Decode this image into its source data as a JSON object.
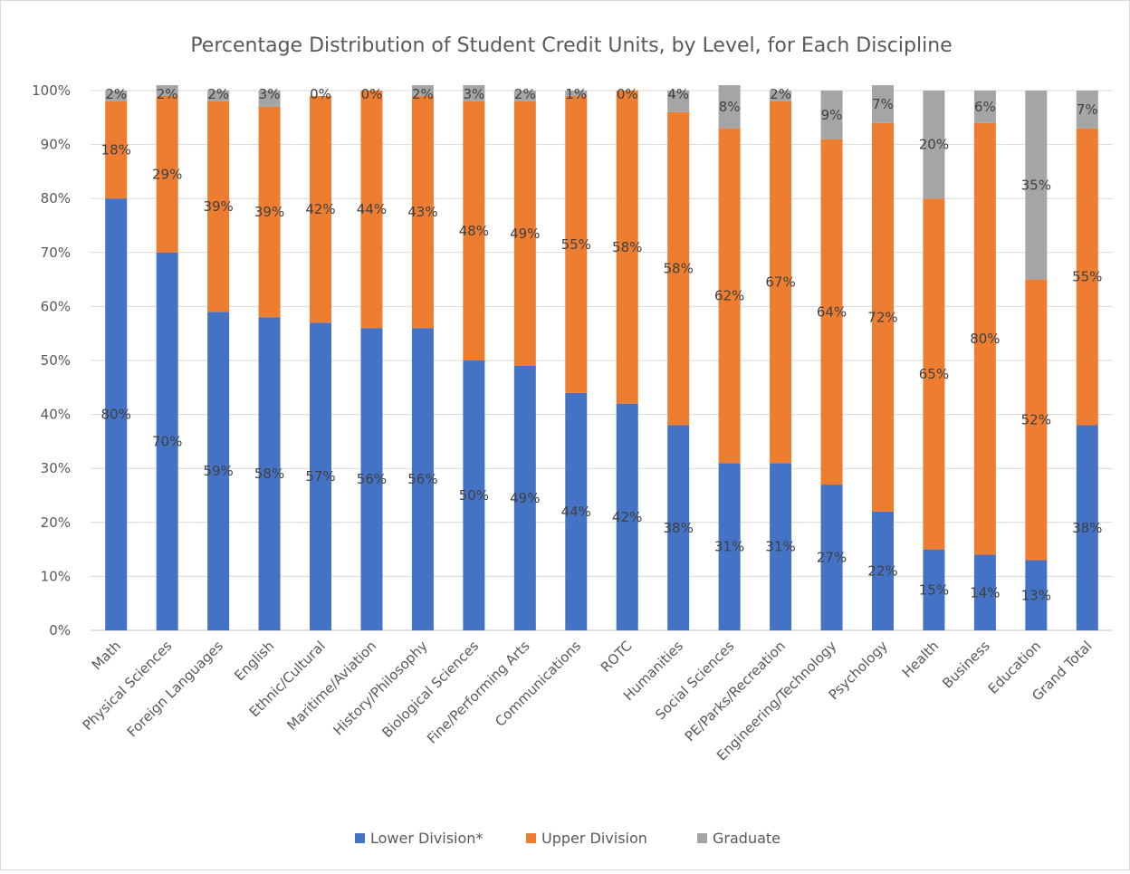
{
  "chart_data": {
    "type": "bar",
    "stacked": true,
    "title": "Percentage Distribution of Student Credit Units, by Level, for Each Discipline",
    "xlabel": "",
    "ylabel": "",
    "ylim": [
      0,
      100
    ],
    "yticks": [
      "0%",
      "10%",
      "20%",
      "30%",
      "40%",
      "50%",
      "60%",
      "70%",
      "80%",
      "90%",
      "100%"
    ],
    "grid": true,
    "legend_position": "bottom",
    "categories": [
      "Math",
      "Physical Sciences",
      "Foreign Languages",
      "English",
      "Ethnic/Cultural",
      "Maritime/Aviation",
      "History/Philosophy",
      "Biological Sciences",
      "Fine/Performing Arts",
      "Communications",
      "ROTC",
      "Humanities",
      "Social Sciences",
      "PE/Parks/Recreation",
      "Engineering/Technology",
      "Psychology",
      "Health",
      "Business",
      "Education",
      "Grand Total"
    ],
    "series": [
      {
        "name": "Lower Division*",
        "color": "#4472c4",
        "values": [
          80,
          70,
          59,
          58,
          57,
          56,
          56,
          50,
          49,
          44,
          42,
          38,
          31,
          31,
          27,
          22,
          15,
          14,
          13,
          38
        ],
        "labels": [
          "80%",
          "70%",
          "59%",
          "58%",
          "57%",
          "56%",
          "56%",
          "50%",
          "49%",
          "44%",
          "42%",
          "38%",
          "31%",
          "31%",
          "27%",
          "22%",
          "15%",
          "14%",
          "13%",
          "38%"
        ]
      },
      {
        "name": "Upper Division",
        "color": "#ed7d31",
        "values": [
          18,
          29,
          39,
          39,
          42,
          44,
          43,
          48,
          49,
          55,
          58,
          58,
          62,
          67,
          64,
          72,
          65,
          80,
          52,
          55
        ],
        "labels": [
          "18%",
          "29%",
          "39%",
          "39%",
          "42%",
          "44%",
          "43%",
          "48%",
          "49%",
          "55%",
          "58%",
          "58%",
          "62%",
          "67%",
          "64%",
          "72%",
          "65%",
          "80%",
          "52%",
          "55%"
        ]
      },
      {
        "name": "Graduate",
        "color": "#a5a5a5",
        "values": [
          2,
          2,
          2,
          3,
          0,
          0,
          2,
          3,
          2,
          1,
          0,
          4,
          8,
          2,
          9,
          7,
          20,
          6,
          35,
          7
        ],
        "labels": [
          "2%",
          "2%",
          "2%",
          "3%",
          "0%",
          "0%",
          "2%",
          "3%",
          "2%",
          "1%",
          "0%",
          "4%",
          "8%",
          "2%",
          "9%",
          "7%",
          "20%",
          "6%",
          "35%",
          "7%"
        ]
      }
    ]
  }
}
